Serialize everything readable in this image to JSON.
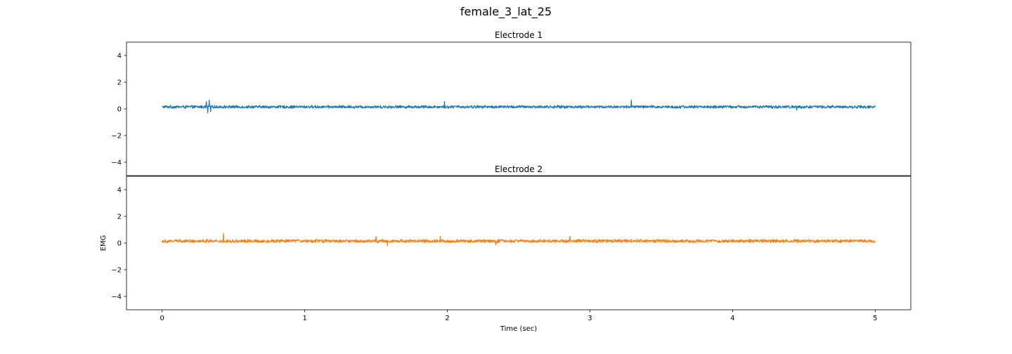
{
  "figure": {
    "title": "female_3_lat_25"
  },
  "chart_data": {
    "type": "line",
    "title": "female_3_lat_25",
    "xlabel": "Time (sec)",
    "xlim": [
      -0.25,
      5.25
    ],
    "x_ticks": [
      0,
      1,
      2,
      3,
      4,
      5
    ],
    "x_range": [
      0,
      5
    ],
    "shared_x": true,
    "grid": false,
    "panels": [
      {
        "title": "Electrode 1",
        "ylabel": "",
        "ylim": [
          -5,
          5
        ],
        "y_ticks": [
          4,
          2,
          0,
          -2,
          -4
        ],
        "series": [
          {
            "color": "#1f77b4",
            "baseline": 0.15,
            "noise_amplitude": 0.12,
            "spikes": [
              {
                "x": 0.31,
                "y": 0.55
              },
              {
                "x": 0.32,
                "y": -0.3
              },
              {
                "x": 0.33,
                "y": 0.65
              },
              {
                "x": 0.34,
                "y": -0.2
              },
              {
                "x": 1.98,
                "y": 0.55
              },
              {
                "x": 3.29,
                "y": 0.65
              },
              {
                "x": 4.45,
                "y": -0.1
              }
            ]
          }
        ]
      },
      {
        "title": "Electrode 2",
        "ylabel": "EMG",
        "ylim": [
          -5,
          5
        ],
        "y_ticks": [
          4,
          2,
          0,
          -2,
          -4
        ],
        "series": [
          {
            "color": "#ff7f0e",
            "baseline": 0.15,
            "noise_amplitude": 0.14,
            "spikes": [
              {
                "x": 0.43,
                "y": 0.7
              },
              {
                "x": 1.5,
                "y": 0.5
              },
              {
                "x": 1.58,
                "y": -0.2
              },
              {
                "x": 1.95,
                "y": 0.5
              },
              {
                "x": 2.34,
                "y": -0.15
              },
              {
                "x": 2.86,
                "y": 0.5
              }
            ]
          }
        ]
      }
    ]
  }
}
